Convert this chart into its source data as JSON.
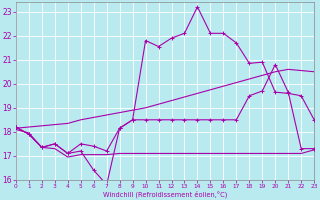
{
  "background_color": "#b8eaf0",
  "grid_color": "#ffffff",
  "line_color": "#aa00aa",
  "xlim": [
    0,
    23
  ],
  "ylim": [
    16,
    23.4
  ],
  "xticks": [
    0,
    1,
    2,
    3,
    4,
    5,
    6,
    7,
    8,
    9,
    10,
    11,
    12,
    13,
    14,
    15,
    16,
    17,
    18,
    19,
    20,
    21,
    22,
    23
  ],
  "yticks": [
    16,
    17,
    18,
    19,
    20,
    21,
    22,
    23
  ],
  "xlabel": "Windchill (Refroidissement éolien,°C)",
  "line1_x": [
    0,
    1,
    2,
    3,
    4,
    5,
    6,
    7,
    8,
    9,
    10,
    11,
    12,
    13,
    14,
    15,
    16,
    17,
    18,
    19,
    20,
    21,
    22,
    23
  ],
  "line1_y": [
    18.2,
    17.9,
    17.35,
    17.5,
    17.1,
    17.2,
    16.4,
    15.8,
    18.15,
    18.5,
    21.8,
    21.55,
    21.9,
    22.1,
    23.2,
    22.1,
    22.1,
    21.7,
    20.85,
    20.9,
    19.65,
    19.6,
    19.5,
    18.5
  ],
  "line2_x": [
    0,
    1,
    2,
    3,
    4,
    5,
    6,
    7,
    8,
    9,
    10,
    11,
    12,
    13,
    14,
    15,
    16,
    17,
    18,
    19,
    20,
    21,
    22,
    23
  ],
  "line2_y": [
    18.1,
    17.95,
    17.35,
    17.3,
    16.95,
    17.05,
    17.05,
    17.05,
    17.1,
    17.1,
    17.1,
    17.1,
    17.1,
    17.1,
    17.1,
    17.1,
    17.1,
    17.1,
    17.1,
    17.1,
    17.1,
    17.1,
    17.1,
    17.25
  ],
  "line3_x": [
    0,
    1,
    2,
    3,
    4,
    5,
    6,
    7,
    8,
    9,
    10,
    11,
    12,
    13,
    14,
    15,
    16,
    17,
    18,
    19,
    20,
    21,
    22,
    23
  ],
  "line3_y": [
    18.15,
    18.2,
    18.25,
    18.3,
    18.35,
    18.5,
    18.6,
    18.7,
    18.8,
    18.9,
    19.0,
    19.15,
    19.3,
    19.45,
    19.6,
    19.75,
    19.9,
    20.05,
    20.2,
    20.35,
    20.5,
    20.6,
    20.55,
    20.5
  ],
  "line4_x": [
    0,
    1,
    2,
    3,
    4,
    5,
    6,
    7,
    8,
    9,
    10,
    11,
    12,
    13,
    14,
    15,
    16,
    17,
    18,
    19,
    20,
    21,
    22,
    23
  ],
  "line4_y": [
    18.2,
    17.9,
    17.35,
    17.5,
    17.1,
    17.5,
    17.4,
    17.2,
    18.15,
    18.5,
    18.5,
    18.5,
    18.5,
    18.5,
    18.5,
    18.5,
    18.5,
    18.5,
    19.5,
    19.7,
    20.8,
    19.65,
    17.3,
    17.3
  ]
}
